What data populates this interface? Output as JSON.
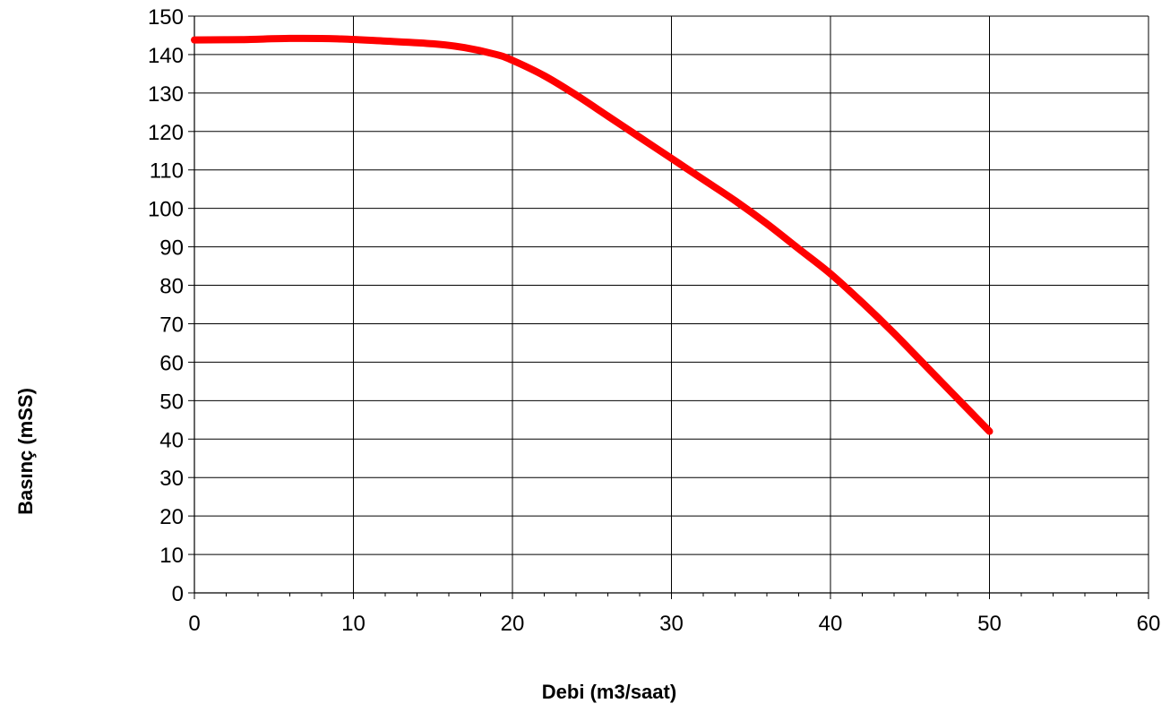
{
  "chart_data": {
    "type": "line",
    "title": "",
    "xlabel": "Debi (m3/saat)",
    "ylabel": "Basınç (mSS)",
    "xlim": [
      0,
      60
    ],
    "ylim": [
      0,
      150
    ],
    "x_ticks": [
      0,
      10,
      20,
      30,
      40,
      50,
      60
    ],
    "y_ticks": [
      0,
      10,
      20,
      30,
      40,
      50,
      60,
      70,
      80,
      90,
      100,
      110,
      120,
      130,
      140,
      150
    ],
    "x_minor_step": 2,
    "grid": true,
    "legend": "none",
    "line_color": "#FF0000",
    "grid_color": "#000000",
    "series": [
      {
        "x": [
          0,
          3,
          6,
          9,
          12,
          15,
          17,
          19,
          20,
          22,
          24,
          26,
          28,
          30,
          32,
          34,
          36,
          38,
          40,
          42,
          44,
          46,
          48,
          50
        ],
        "y": [
          143.8,
          143.9,
          144.2,
          144.1,
          143.5,
          142.8,
          141.8,
          140.0,
          138.5,
          134.5,
          129.5,
          124.0,
          118.5,
          113.0,
          107.5,
          102.0,
          96.0,
          89.5,
          83.0,
          75.5,
          67.5,
          59.0,
          50.5,
          42.0
        ]
      }
    ]
  }
}
